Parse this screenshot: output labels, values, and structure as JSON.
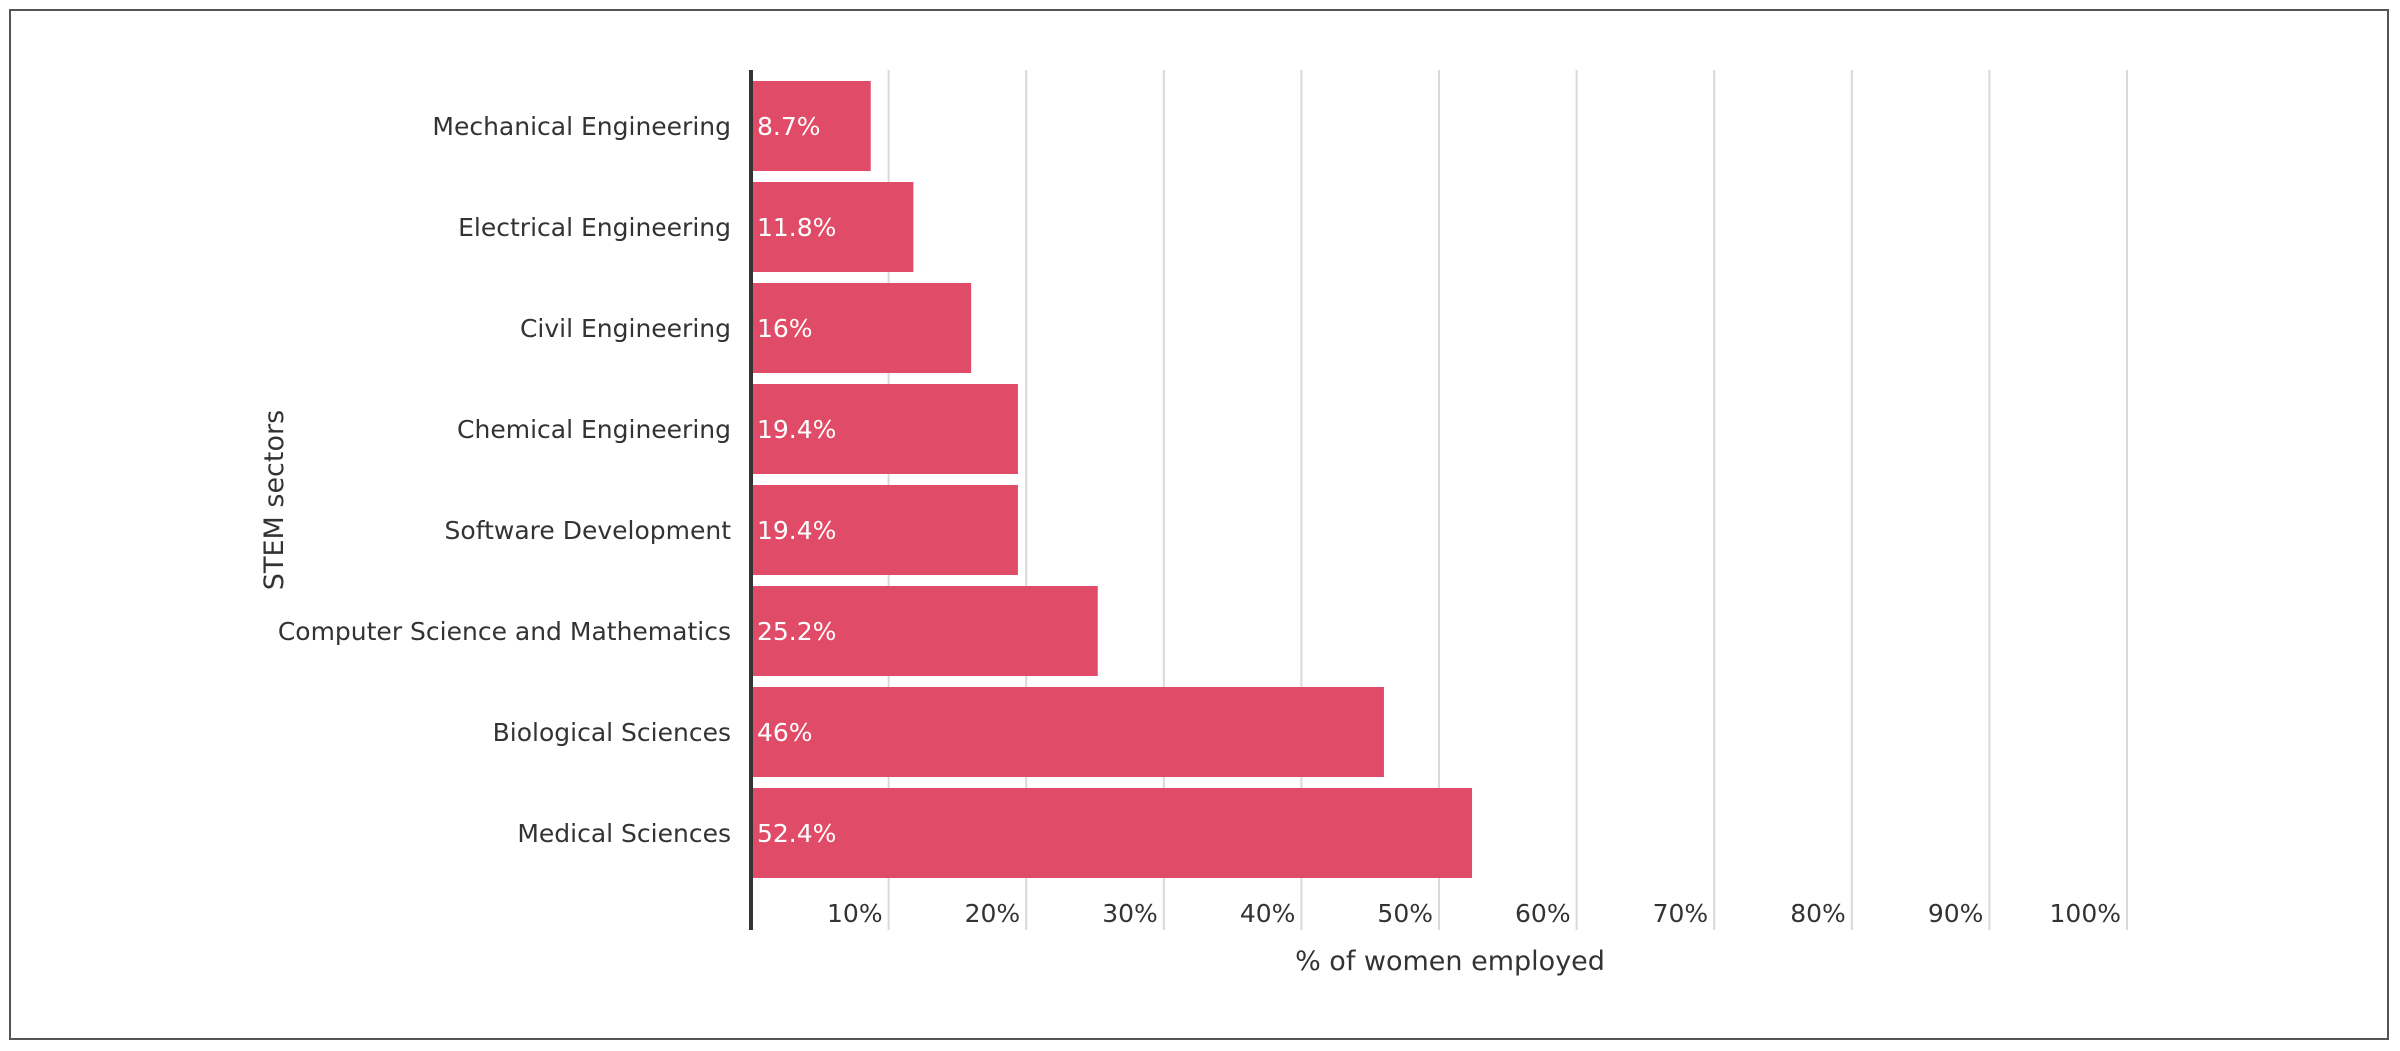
{
  "chart_data": {
    "type": "bar",
    "orientation": "horizontal",
    "title": "",
    "xlabel": "% of women employed",
    "ylabel": "STEM sectors",
    "categories": [
      "Mechanical Engineering",
      "Electrical Engineering",
      "Civil Engineering",
      "Chemical Engineering",
      "Software Development",
      "Computer Science and Mathematics",
      "Biological Sciences",
      "Medical Sciences"
    ],
    "values": [
      8.7,
      11.8,
      16,
      19.4,
      19.4,
      25.2,
      46,
      52.4
    ],
    "value_labels": [
      "8.7%",
      "11.8%",
      "16%",
      "19.4%",
      "19.4%",
      "25.2%",
      "46%",
      "52.4%"
    ],
    "xlim": [
      0,
      100
    ],
    "xticks": [
      10,
      20,
      30,
      40,
      50,
      60,
      70,
      80,
      90,
      100
    ],
    "xtick_labels": [
      "10%",
      "20%",
      "30%",
      "40%",
      "50%",
      "60%",
      "70%",
      "80%",
      "90%",
      "100%"
    ],
    "grid": "vertical",
    "bar_color": "#e04b67",
    "grid_color": "#d9d9d9",
    "axis_color": "#333333"
  }
}
